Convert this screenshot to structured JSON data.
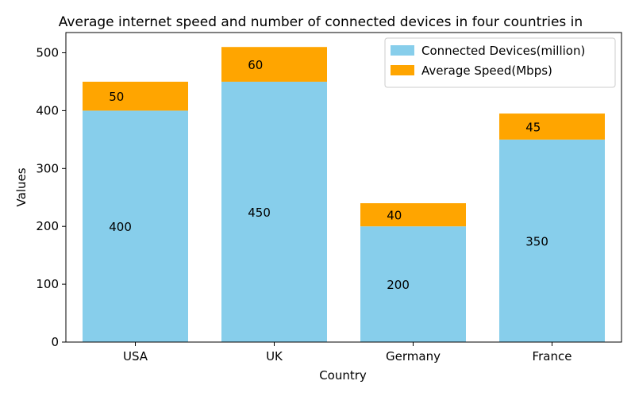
{
  "chart_data": {
    "type": "bar",
    "stacked": true,
    "title": "Average internet speed and number of connected devices in four countries in",
    "xlabel": "Country",
    "ylabel": "Values",
    "categories": [
      "USA",
      "UK",
      "Germany",
      "France"
    ],
    "series": [
      {
        "name": "Connected Devices(million)",
        "values": [
          400,
          450,
          200,
          350
        ],
        "color": "#87ceeb"
      },
      {
        "name": "Average Speed(Mbps)",
        "values": [
          50,
          60,
          40,
          45
        ],
        "color": "#ffa500"
      }
    ],
    "ylim": [
      0,
      535
    ],
    "yticks": [
      0,
      100,
      200,
      300,
      400,
      500
    ],
    "grid": false,
    "legend_position": "top-right"
  }
}
